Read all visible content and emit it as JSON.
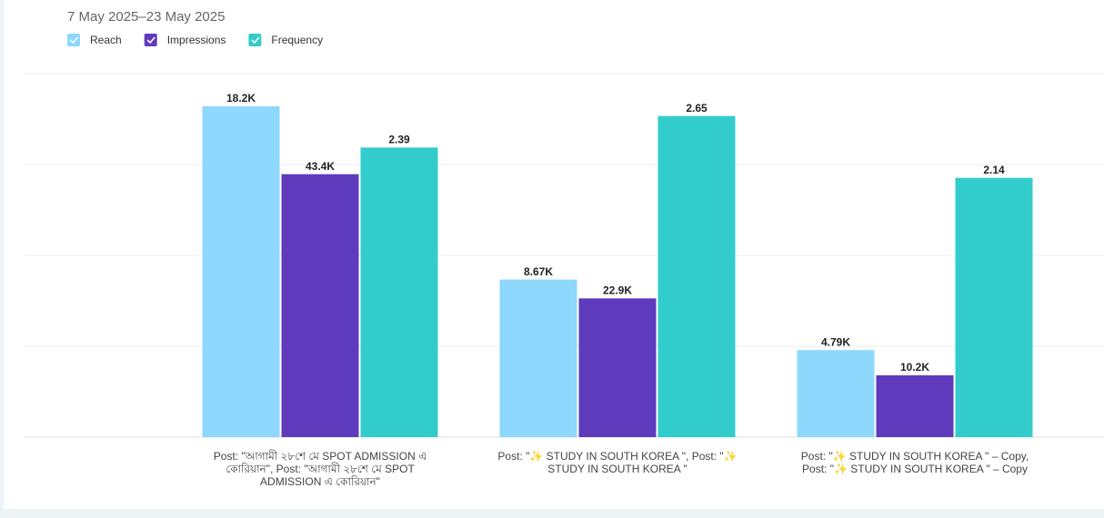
{
  "chart_data": {
    "type": "bar",
    "title": "7 May 2025–23 May 2025",
    "categories": [
      "Post: \"আগামী ২৮শে মে SPOT ADMISSION এ কোরিয়ান\", Post: \"আগামী ২৮শে মে SPOT ADMISSION এ কোরিয়ান\"",
      "Post: \"✨ STUDY IN SOUTH KOREA \", Post: \"✨ STUDY IN SOUTH KOREA \"",
      "Post: \"✨ STUDY IN SOUTH KOREA \" – Copy, Post: \"✨ STUDY IN SOUTH KOREA \" – Copy"
    ],
    "series": [
      {
        "name": "Reach",
        "color": "#8dd8fc",
        "values": [
          18200,
          8670,
          4790
        ],
        "value_labels": [
          "18.2K",
          "8.67K",
          "4.79K"
        ],
        "ylim": [
          0,
          20000
        ]
      },
      {
        "name": "Impressions",
        "color": "#5e3bbd",
        "values": [
          43400,
          22900,
          10200
        ],
        "value_labels": [
          "43.4K",
          "22.9K",
          "10.2K"
        ],
        "ylim": [
          0,
          60000
        ]
      },
      {
        "name": "Frequency",
        "color": "#33cccc",
        "values": [
          2.39,
          2.65,
          2.14
        ],
        "ylim": [
          0,
          3
        ]
      }
    ],
    "grid": true
  }
}
